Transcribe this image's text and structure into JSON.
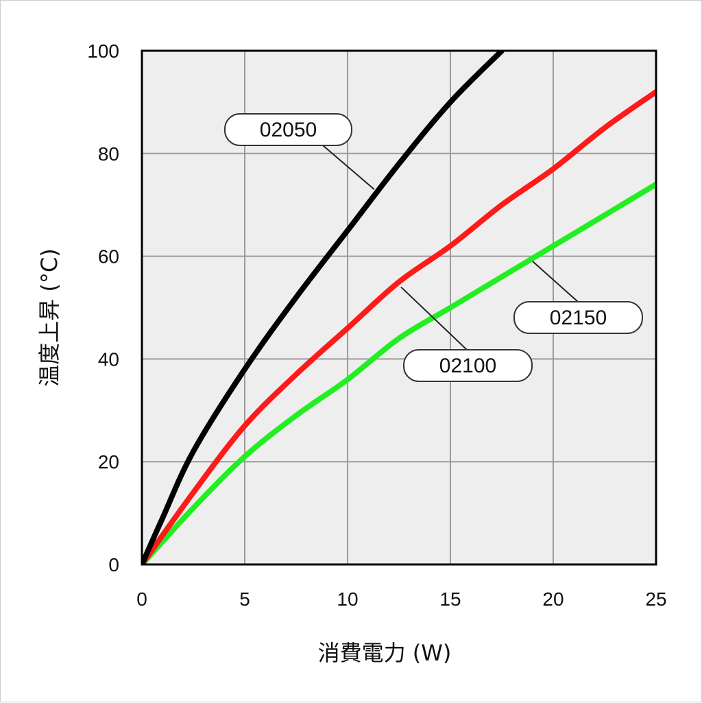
{
  "chart_data": {
    "type": "line",
    "title": "",
    "xlabel": "消費電力 (W)",
    "ylabel": "温度上昇 (°C)",
    "xlim": [
      0,
      25
    ],
    "ylim": [
      0,
      100
    ],
    "xticks": [
      0,
      5,
      10,
      15,
      20,
      25
    ],
    "yticks": [
      0,
      20,
      40,
      60,
      80,
      100
    ],
    "grid": true,
    "plot_background": "#eeeeee",
    "series": [
      {
        "name": "02050",
        "color": "#000000",
        "x": [
          0,
          1,
          2.5,
          5,
          7.5,
          10,
          12.5,
          15,
          17.5
        ],
        "y": [
          0,
          9,
          22,
          38,
          52,
          65,
          78,
          90,
          100
        ]
      },
      {
        "name": "02100",
        "color": "#ff1a1a",
        "x": [
          0,
          2.5,
          5,
          7.5,
          10,
          12.5,
          15,
          17.5,
          20,
          22.5,
          25
        ],
        "y": [
          0,
          14,
          27,
          37,
          46,
          55,
          62,
          70,
          77,
          85,
          92
        ]
      },
      {
        "name": "02150",
        "color": "#22ee22",
        "x": [
          0,
          2.5,
          5,
          7.5,
          10,
          12.5,
          15,
          17.5,
          20,
          22.5,
          25
        ],
        "y": [
          0,
          11,
          21,
          29,
          36,
          44,
          50,
          56,
          62,
          68,
          74
        ]
      }
    ],
    "annotations": [
      {
        "label": "02050",
        "series": "02050",
        "point": [
          11.3,
          73
        ]
      },
      {
        "label": "02100",
        "series": "02100",
        "point": [
          12.6,
          54
        ]
      },
      {
        "label": "02150",
        "series": "02150",
        "point": [
          19.0,
          59
        ]
      }
    ]
  }
}
